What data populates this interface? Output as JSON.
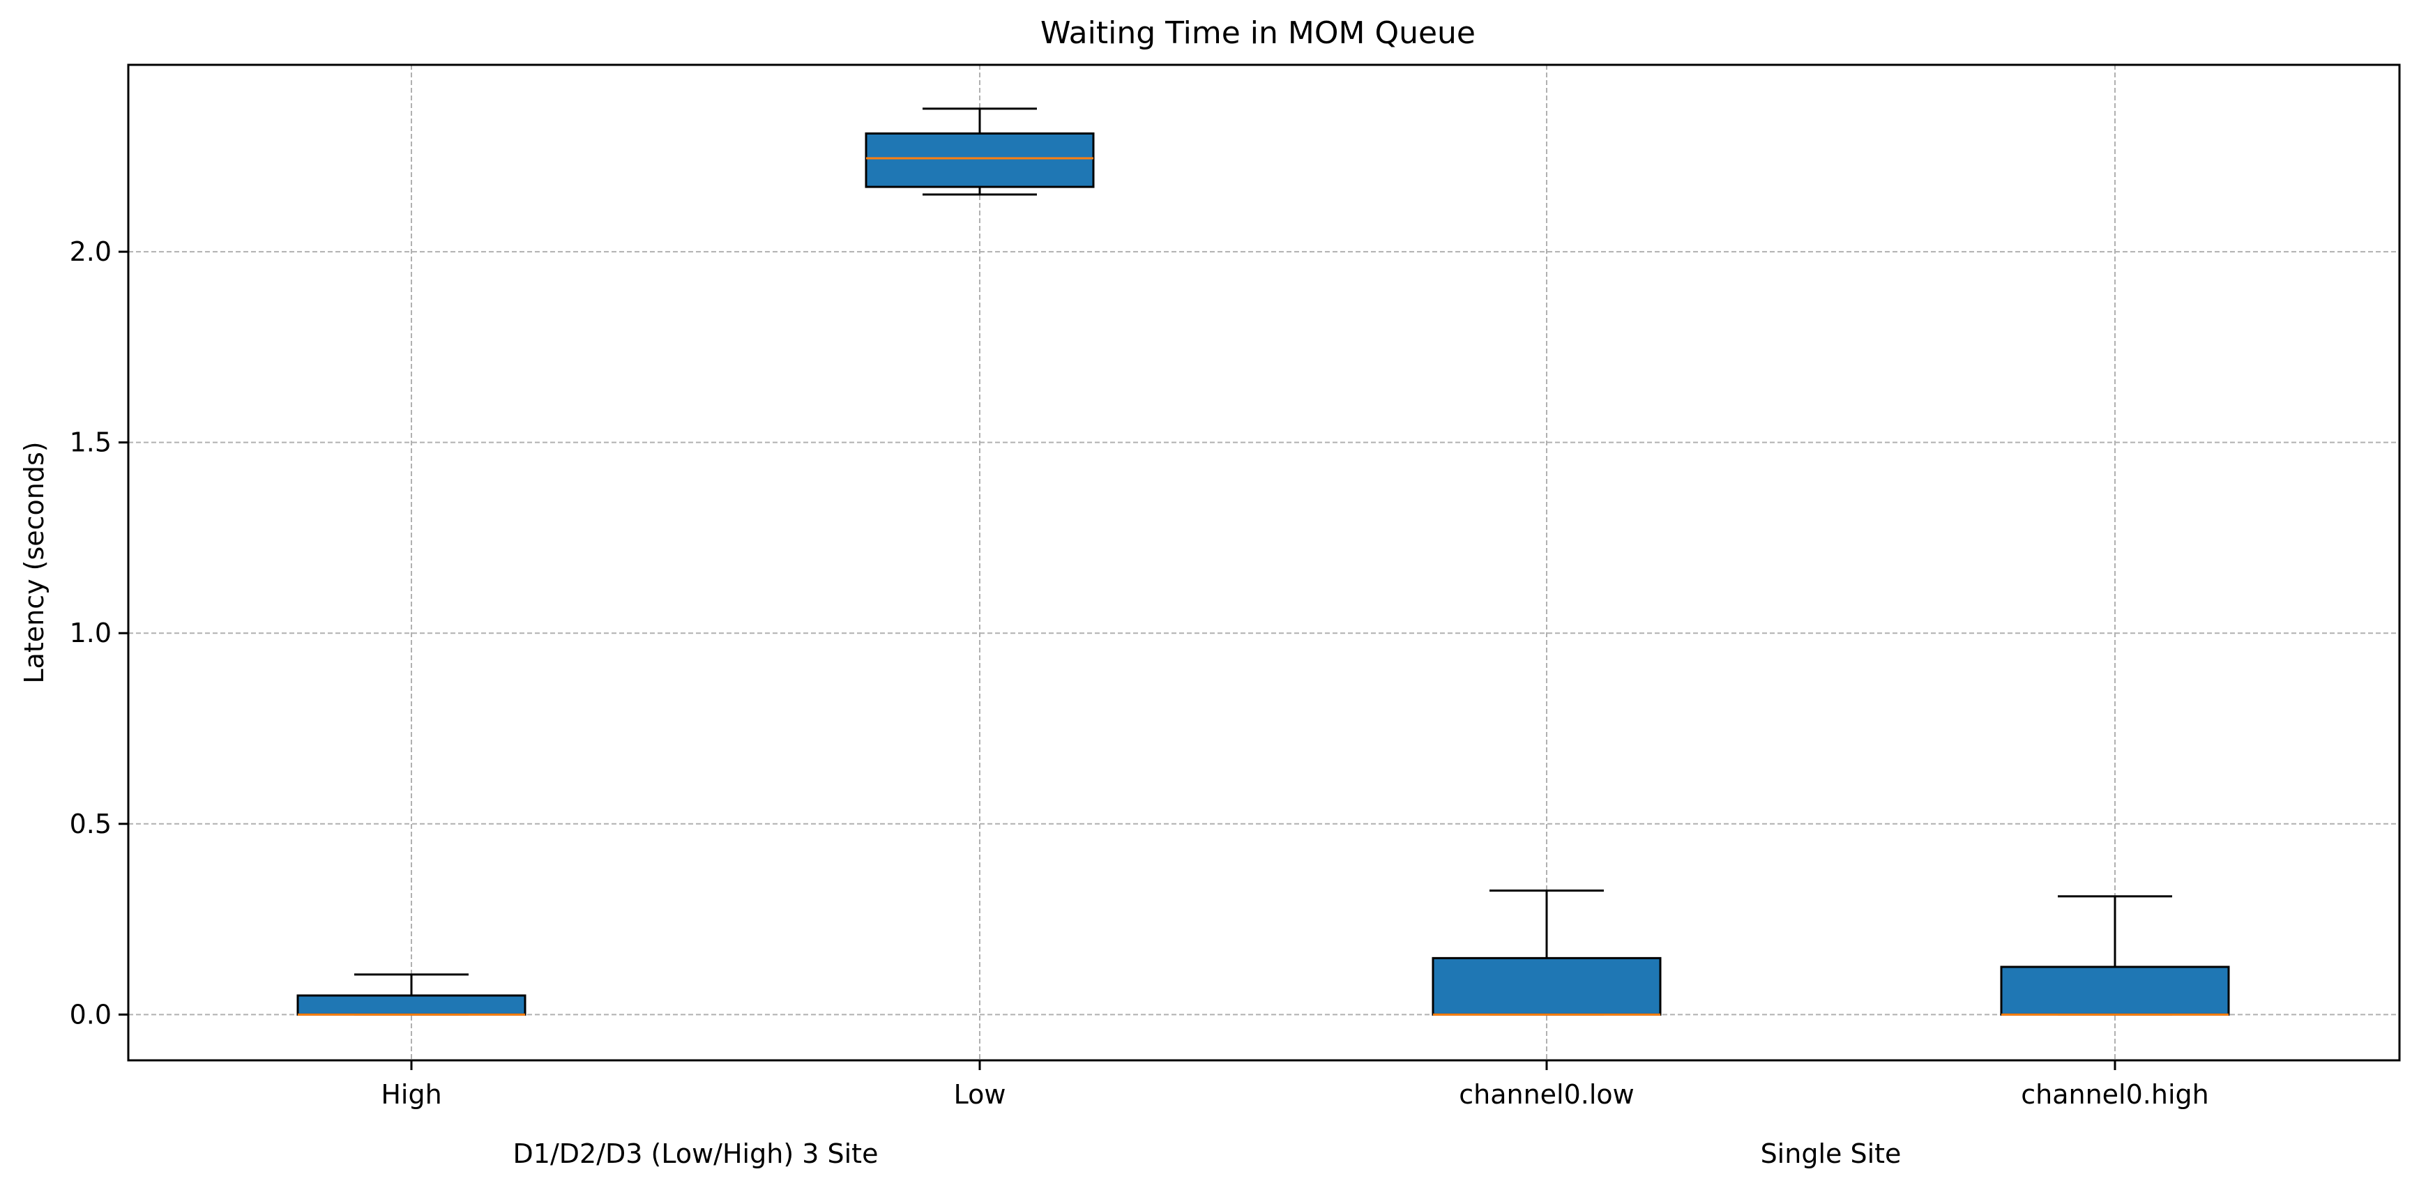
{
  "chart_data": {
    "type": "box",
    "title": "Waiting Time in MOM Queue",
    "xlabel": "",
    "ylabel": "Latency (seconds)",
    "ylim": [
      -0.12,
      2.49
    ],
    "yticks": [
      "0.0",
      "0.5",
      "1.0",
      "1.5",
      "2.0"
    ],
    "grid": true,
    "categories": [
      "High",
      "Low",
      "channel0.low",
      "channel0.high"
    ],
    "group_labels": [
      {
        "label": "D1/D2/D3 (Low/High) 3 Site",
        "categories": [
          "High",
          "Low"
        ]
      },
      {
        "label": "Single Site",
        "categories": [
          "channel0.low",
          "channel0.high"
        ]
      }
    ],
    "boxes": [
      {
        "category": "High",
        "whisker_low": 0.0,
        "q1": 0.0,
        "median": 0.0,
        "q3": 0.05,
        "whisker_high": 0.105
      },
      {
        "category": "Low",
        "whisker_low": 2.15,
        "q1": 2.17,
        "median": 2.245,
        "q3": 2.31,
        "whisker_high": 2.375
      },
      {
        "category": "channel0.low",
        "whisker_low": 0.0,
        "q1": 0.0,
        "median": 0.0,
        "q3": 0.148,
        "whisker_high": 0.325
      },
      {
        "category": "channel0.high",
        "whisker_low": 0.0,
        "q1": 0.0,
        "median": 0.0,
        "q3": 0.125,
        "whisker_high": 0.31
      }
    ],
    "colors": {
      "box_fill": "#1f77b4",
      "median": "#ff7f0e",
      "edge": "#000000",
      "grid": "#b0b0b0"
    }
  }
}
